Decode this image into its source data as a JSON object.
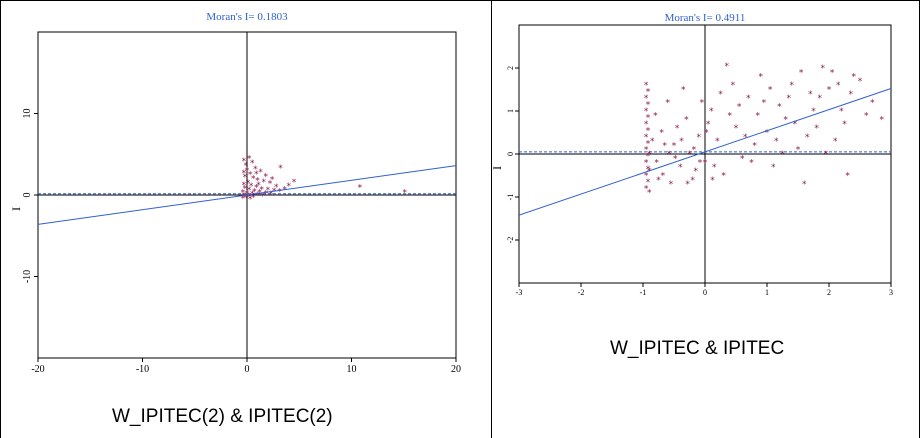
{
  "charts": [
    {
      "caption": "W_IPITEC(2) & IPITEC(2)",
      "chart_data": {
        "type": "scatter",
        "title": "Moran's I= 0.1803",
        "ylabel": "I",
        "xlabel": "",
        "xlim": [
          -20,
          20
        ],
        "ylim": [
          -20,
          20
        ],
        "xticks": [
          -20,
          -10,
          0,
          10,
          20
        ],
        "xtick_labels": [
          "-20",
          "-10",
          "0",
          "10",
          "20"
        ],
        "yticks": [
          -10,
          0,
          10
        ],
        "ytick_labels": [
          "-10",
          "0",
          "10"
        ],
        "grid": false,
        "marker": "*",
        "marker_color": "#8b1a4a",
        "line_color": "#2f5fd0",
        "regression": {
          "slope": 0.1803,
          "intercept": 0
        },
        "mean_line_y": 0.15,
        "points": [
          [
            -0.3,
            4.2
          ],
          [
            0.2,
            4.5
          ],
          [
            0.5,
            3.9
          ],
          [
            -0.1,
            3.6
          ],
          [
            0.8,
            3.2
          ],
          [
            1.3,
            2.8
          ],
          [
            0.3,
            2.5
          ],
          [
            -0.2,
            2.2
          ],
          [
            0.6,
            2.0
          ],
          [
            1.0,
            1.8
          ],
          [
            1.6,
            1.6
          ],
          [
            2.2,
            1.4
          ],
          [
            3.2,
            3.3
          ],
          [
            4.5,
            1.6
          ],
          [
            4.0,
            1.1
          ],
          [
            2.8,
            1.0
          ],
          [
            0.1,
            1.5
          ],
          [
            -0.3,
            1.2
          ],
          [
            0.4,
            1.1
          ],
          [
            0.9,
            0.9
          ],
          [
            1.4,
            0.7
          ],
          [
            2.0,
            0.6
          ],
          [
            2.6,
            0.5
          ],
          [
            3.1,
            0.4
          ],
          [
            -0.2,
            0.8
          ],
          [
            0.2,
            0.6
          ],
          [
            0.7,
            0.4
          ],
          [
            1.2,
            0.3
          ],
          [
            1.8,
            0.2
          ],
          [
            -0.4,
            0.3
          ],
          [
            0.0,
            0.2
          ],
          [
            0.5,
            0.1
          ],
          [
            1.0,
            0.0
          ],
          [
            1.5,
            -0.1
          ],
          [
            -0.3,
            -0.1
          ],
          [
            0.1,
            -0.2
          ],
          [
            0.6,
            -0.3
          ],
          [
            -0.4,
            -0.4
          ],
          [
            0.3,
            -0.5
          ],
          [
            -0.1,
            -0.3
          ],
          [
            10.8,
            0.9
          ],
          [
            15.1,
            0.3
          ],
          [
            2.4,
            1.9
          ],
          [
            1.8,
            2.3
          ],
          [
            0.0,
            3.0
          ],
          [
            -0.3,
            2.7
          ],
          [
            0.9,
            2.6
          ],
          [
            1.1,
            1.2
          ],
          [
            3.6,
            0.7
          ],
          [
            2.3,
            0.1
          ]
        ]
      }
    },
    {
      "caption": "W_IPITEC & IPITEC",
      "chart_data": {
        "type": "scatter",
        "title": "Moran's I= 0.4911",
        "ylabel": "I",
        "xlabel": "",
        "xlim": [
          -3,
          3
        ],
        "ylim": [
          -3,
          3
        ],
        "xticks": [
          -3,
          -2,
          -1,
          0,
          1,
          2,
          3
        ],
        "xtick_labels": [
          "-3",
          "-2",
          "-1",
          "0",
          "1",
          "2",
          "3"
        ],
        "yticks": [
          -2,
          -1,
          0,
          1,
          2
        ],
        "ytick_labels": [
          "-2",
          "-1",
          "0",
          "1",
          "2"
        ],
        "grid": false,
        "marker": "*",
        "marker_color": "#8b1a4a",
        "line_color": "#2f5fd0",
        "regression": {
          "slope": 0.4911,
          "intercept": 0.05
        },
        "mean_line_y": 0.05,
        "points": [
          [
            -0.95,
            1.6
          ],
          [
            -0.95,
            1.3
          ],
          [
            -0.95,
            1.0
          ],
          [
            -0.95,
            0.7
          ],
          [
            -0.95,
            0.4
          ],
          [
            -0.95,
            0.1
          ],
          [
            -0.95,
            -0.2
          ],
          [
            -0.95,
            -0.5
          ],
          [
            -0.95,
            -0.8
          ],
          [
            -0.92,
            1.45
          ],
          [
            -0.92,
            1.15
          ],
          [
            -0.92,
            0.85
          ],
          [
            -0.92,
            0.55
          ],
          [
            -0.92,
            0.25
          ],
          [
            -0.92,
            -0.05
          ],
          [
            -0.92,
            -0.35
          ],
          [
            -0.92,
            -0.65
          ],
          [
            -0.9,
            -0.9
          ],
          [
            -0.9,
            0.0
          ],
          [
            -0.9,
            -0.4
          ],
          [
            -0.8,
            0.9
          ],
          [
            -0.7,
            0.5
          ],
          [
            -0.6,
            1.2
          ],
          [
            -0.5,
            0.2
          ],
          [
            -0.4,
            -0.3
          ],
          [
            -0.3,
            0.8
          ],
          [
            -0.2,
            -0.6
          ],
          [
            -0.1,
            0.4
          ],
          [
            0.0,
            -0.2
          ],
          [
            0.1,
            1.0
          ],
          [
            0.2,
            0.3
          ],
          [
            0.3,
            -0.5
          ],
          [
            0.35,
            2.05
          ],
          [
            0.45,
            1.6
          ],
          [
            0.5,
            0.6
          ],
          [
            0.6,
            -0.1
          ],
          [
            0.7,
            1.3
          ],
          [
            0.8,
            0.2
          ],
          [
            0.9,
            1.8
          ],
          [
            1.0,
            0.5
          ],
          [
            1.1,
            -0.3
          ],
          [
            1.2,
            1.1
          ],
          [
            1.3,
            0.8
          ],
          [
            1.4,
            1.6
          ],
          [
            1.5,
            0.1
          ],
          [
            1.6,
            -0.7
          ],
          [
            1.7,
            1.4
          ],
          [
            1.8,
            0.6
          ],
          [
            1.9,
            2.0
          ],
          [
            2.0,
            1.5
          ],
          [
            2.1,
            0.3
          ],
          [
            2.2,
            1.0
          ],
          [
            2.3,
            -0.5
          ],
          [
            2.4,
            1.8
          ],
          [
            2.5,
            1.7
          ],
          [
            2.6,
            0.9
          ],
          [
            2.7,
            1.2
          ],
          [
            2.85,
            0.8
          ],
          [
            -0.75,
            -0.6
          ],
          [
            -0.65,
            0.2
          ],
          [
            -0.55,
            -0.7
          ],
          [
            -0.45,
            0.6
          ],
          [
            -0.35,
            1.5
          ],
          [
            -0.25,
            0.0
          ],
          [
            -0.15,
            -0.4
          ],
          [
            -0.05,
            1.2
          ],
          [
            0.05,
            0.7
          ],
          [
            0.15,
            -0.3
          ],
          [
            0.25,
            1.4
          ],
          [
            0.4,
            0.9
          ],
          [
            0.55,
            1.1
          ],
          [
            0.65,
            0.4
          ],
          [
            0.75,
            -0.2
          ],
          [
            0.85,
            0.9
          ],
          [
            0.95,
            1.2
          ],
          [
            1.05,
            1.5
          ],
          [
            1.15,
            0.3
          ],
          [
            1.25,
            0.0
          ],
          [
            1.35,
            1.3
          ],
          [
            1.45,
            0.7
          ],
          [
            1.55,
            1.9
          ],
          [
            1.65,
            0.4
          ],
          [
            1.75,
            1.0
          ],
          [
            1.85,
            1.3
          ],
          [
            1.95,
            0.0
          ],
          [
            2.05,
            1.9
          ],
          [
            2.15,
            1.6
          ],
          [
            2.25,
            0.7
          ],
          [
            2.35,
            1.4
          ],
          [
            -0.85,
            0.3
          ],
          [
            -0.78,
            -0.2
          ],
          [
            -0.68,
            -0.5
          ],
          [
            -0.58,
            0.0
          ],
          [
            -0.48,
            -0.1
          ],
          [
            -0.38,
            0.3
          ],
          [
            -0.28,
            -0.7
          ],
          [
            -0.18,
            0.1
          ],
          [
            -0.08,
            -0.2
          ],
          [
            0.02,
            0.5
          ],
          [
            0.12,
            -0.6
          ]
        ]
      }
    }
  ]
}
